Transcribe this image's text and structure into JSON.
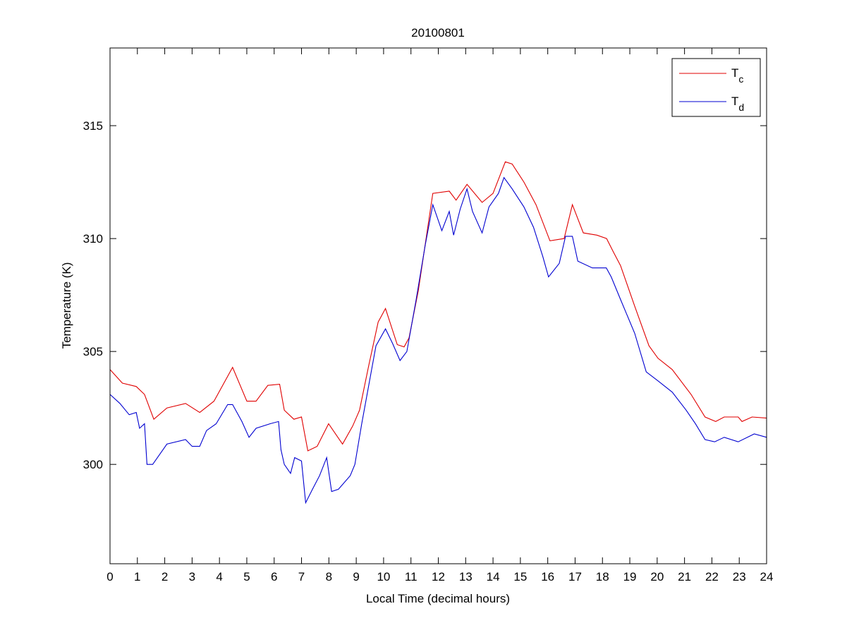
{
  "chart_data": {
    "type": "line",
    "title": "20100801",
    "xlabel": "Local Time (decimal hours)",
    "ylabel": "Temperature (K)",
    "xlim": [
      0,
      24
    ],
    "ylim": [
      295.6,
      318.44
    ],
    "xticks": [
      0,
      1,
      2,
      3,
      4,
      5,
      6,
      7,
      8,
      9,
      10,
      11,
      12,
      13,
      14,
      15,
      16,
      17,
      18,
      19,
      20,
      21,
      22,
      23,
      24
    ],
    "yticks": [
      300,
      305,
      310,
      315
    ],
    "grid": false,
    "legend_position": "top-right",
    "series": [
      {
        "name": "T_c",
        "label": "T",
        "sub": "c",
        "color": "#e00000",
        "x": [
          0,
          0.45,
          0.96,
          1.26,
          1.6,
          2.08,
          2.76,
          3.28,
          3.8,
          4.48,
          5.0,
          5.34,
          5.77,
          6.2,
          6.37,
          6.72,
          7.0,
          7.23,
          7.57,
          7.99,
          8.5,
          8.87,
          9.12,
          9.46,
          9.8,
          10.07,
          10.5,
          10.75,
          10.93,
          11.27,
          11.8,
          12.4,
          12.65,
          13.05,
          13.6,
          14.0,
          14.45,
          14.7,
          15.13,
          15.57,
          16.08,
          16.6,
          16.9,
          17.3,
          17.8,
          18.15,
          18.4,
          18.66,
          19.18,
          19.7,
          20.03,
          20.55,
          21.24,
          21.75,
          22.14,
          22.45,
          22.96,
          23.1,
          23.47,
          24
        ],
        "y": [
          304.2,
          303.6,
          303.45,
          303.1,
          302.0,
          302.5,
          302.7,
          302.3,
          302.8,
          304.3,
          302.8,
          302.8,
          303.5,
          303.55,
          302.4,
          302.0,
          302.1,
          300.6,
          300.8,
          301.8,
          300.9,
          301.7,
          302.4,
          304.4,
          306.3,
          306.9,
          305.3,
          305.2,
          305.6,
          307.7,
          312.0,
          312.1,
          311.7,
          312.4,
          311.6,
          312.0,
          313.4,
          313.3,
          312.5,
          311.5,
          309.9,
          310.0,
          311.5,
          310.25,
          310.15,
          310.0,
          309.4,
          308.8,
          307.0,
          305.25,
          304.7,
          304.2,
          303.1,
          302.1,
          301.9,
          302.1,
          302.1,
          301.9,
          302.1,
          302.05
        ]
      },
      {
        "name": "T_d",
        "label": "T",
        "sub": "d",
        "color": "#0000d0",
        "x": [
          0,
          0.36,
          0.7,
          0.96,
          1.08,
          1.26,
          1.35,
          1.56,
          2.08,
          2.76,
          3.0,
          3.28,
          3.53,
          3.88,
          4.3,
          4.48,
          4.82,
          5.08,
          5.34,
          5.85,
          6.16,
          6.25,
          6.37,
          6.6,
          6.75,
          7.0,
          7.15,
          7.4,
          7.66,
          7.92,
          8.1,
          8.35,
          8.78,
          8.95,
          9.2,
          9.72,
          10.07,
          10.33,
          10.6,
          10.85,
          11.19,
          11.52,
          11.8,
          12.13,
          12.4,
          12.56,
          12.8,
          13.05,
          13.25,
          13.6,
          13.85,
          14.2,
          14.4,
          14.7,
          15.13,
          15.48,
          15.82,
          16.03,
          16.42,
          16.65,
          16.9,
          17.1,
          17.63,
          17.97,
          18.14,
          18.32,
          18.66,
          19.18,
          19.6,
          20.03,
          20.55,
          21.06,
          21.4,
          21.75,
          22.1,
          22.45,
          22.96,
          23.55,
          24
        ],
        "y": [
          303.1,
          302.7,
          302.2,
          302.3,
          301.6,
          301.8,
          300.0,
          300.0,
          300.9,
          301.1,
          300.8,
          300.8,
          301.5,
          301.8,
          302.65,
          302.65,
          301.9,
          301.2,
          301.6,
          301.8,
          301.9,
          300.65,
          300.0,
          299.6,
          300.3,
          300.15,
          298.3,
          298.9,
          299.5,
          300.3,
          298.8,
          298.9,
          299.5,
          300.0,
          301.8,
          305.25,
          306.0,
          305.35,
          304.6,
          305.0,
          307.3,
          309.7,
          311.5,
          310.35,
          311.2,
          310.15,
          311.3,
          312.2,
          311.2,
          310.25,
          311.4,
          312.0,
          312.7,
          312.2,
          311.4,
          310.5,
          309.2,
          308.3,
          308.9,
          310.1,
          310.1,
          309.0,
          308.7,
          308.7,
          308.7,
          308.3,
          307.3,
          305.8,
          304.1,
          303.7,
          303.2,
          302.4,
          301.8,
          301.1,
          301.0,
          301.2,
          301.0,
          301.35,
          301.2
        ]
      }
    ]
  }
}
